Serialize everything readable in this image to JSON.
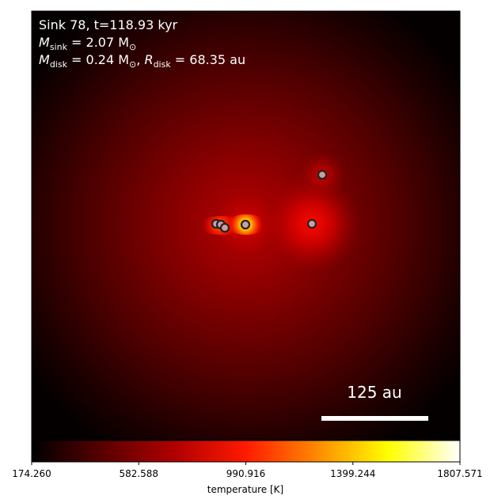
{
  "chart_data": {
    "type": "heatmap",
    "title_lines": {
      "line1": "Sink 78, t=118.93 kyr",
      "line2_symbol": "M",
      "line2_sub": "sink",
      "line2_rest": " = 2.07 M",
      "line2_unit_sub": "⊙",
      "line3_symbol": "M",
      "line3_sub": "disk",
      "line3_mid": " = 0.24 M",
      "line3_unit_sub": "⊙",
      "line3_sep": ", ",
      "line3_symbol2": "R",
      "line3_sub2": "disk",
      "line3_rest": " = 68.35 au"
    },
    "scale_bar": {
      "label": "125 au",
      "length_au": 125
    },
    "colorbar": {
      "label": "temperature [K]",
      "min": 174.26,
      "max": 1807.571,
      "ticks": [
        "174.260",
        "582.588",
        "990.916",
        "1399.244",
        "1807.571"
      ],
      "colormap": [
        "#000000",
        "#5a0000",
        "#b00000",
        "#ff1a00",
        "#ff8a00",
        "#ffff00",
        "#ffffff"
      ]
    },
    "sinks_relative_px": [
      {
        "dx": -37,
        "dy": 0
      },
      {
        "dx": -31,
        "dy": 1
      },
      {
        "dx": -26,
        "dy": 5
      },
      {
        "dx": 0,
        "dy": 1
      },
      {
        "dx": 84,
        "dy": 0
      },
      {
        "dx": 97,
        "dy": -62
      }
    ]
  },
  "colors": {
    "background_dark": "#000000",
    "hot_core": "#ffff00",
    "sink_face": "#c8a0a0",
    "sink_edge": "#222222"
  }
}
